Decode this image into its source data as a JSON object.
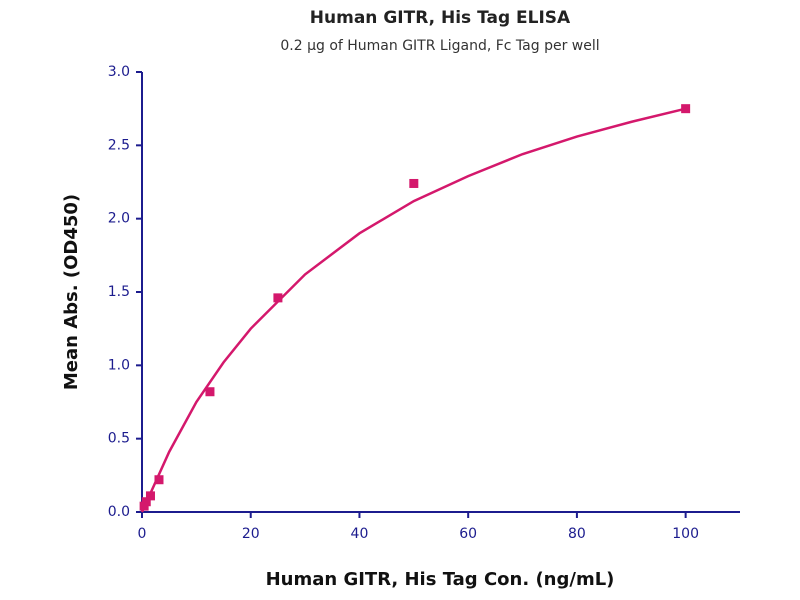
{
  "chart_data": {
    "type": "scatter",
    "title": "Human GITR, His Tag ELISA",
    "subtitle": "0.2 µg of Human GITR Ligand, Fc Tag per well",
    "x_label": "Human GITR, His Tag Con. (ng/mL)",
    "y_label": "Mean Abs. (OD450)",
    "xlim": [
      0,
      110
    ],
    "ylim": [
      0,
      3
    ],
    "xticks": [
      0,
      20,
      40,
      60,
      80,
      100
    ],
    "yticks": [
      {
        "value": 0,
        "label": "0.0"
      },
      {
        "value": 0.5,
        "label": "0.5"
      },
      {
        "value": 1,
        "label": "1.0"
      },
      {
        "value": 1.5,
        "label": "1.5"
      },
      {
        "value": 2,
        "label": "2.0"
      },
      {
        "value": 2.5,
        "label": "2.5"
      },
      {
        "value": 3,
        "label": "3.0"
      }
    ],
    "axis_color": "#1c1c8e",
    "series": [
      {
        "mode": "markers",
        "color": "#d4186c",
        "x": [
          0.39,
          0.78,
          1.56,
          3.125,
          12.5,
          25,
          50,
          100
        ],
        "values": [
          0.04,
          0.07,
          0.11,
          0.22,
          0.82,
          1.46,
          2.24,
          2.75
        ]
      },
      {
        "mode": "line",
        "color": "#d4186c",
        "x": [
          0,
          5,
          10,
          15,
          20,
          30,
          40,
          50,
          60,
          70,
          80,
          90,
          100
        ],
        "values": [
          0,
          0.41,
          0.75,
          1.02,
          1.25,
          1.62,
          1.9,
          2.12,
          2.29,
          2.44,
          2.56,
          2.66,
          2.75
        ]
      }
    ]
  }
}
